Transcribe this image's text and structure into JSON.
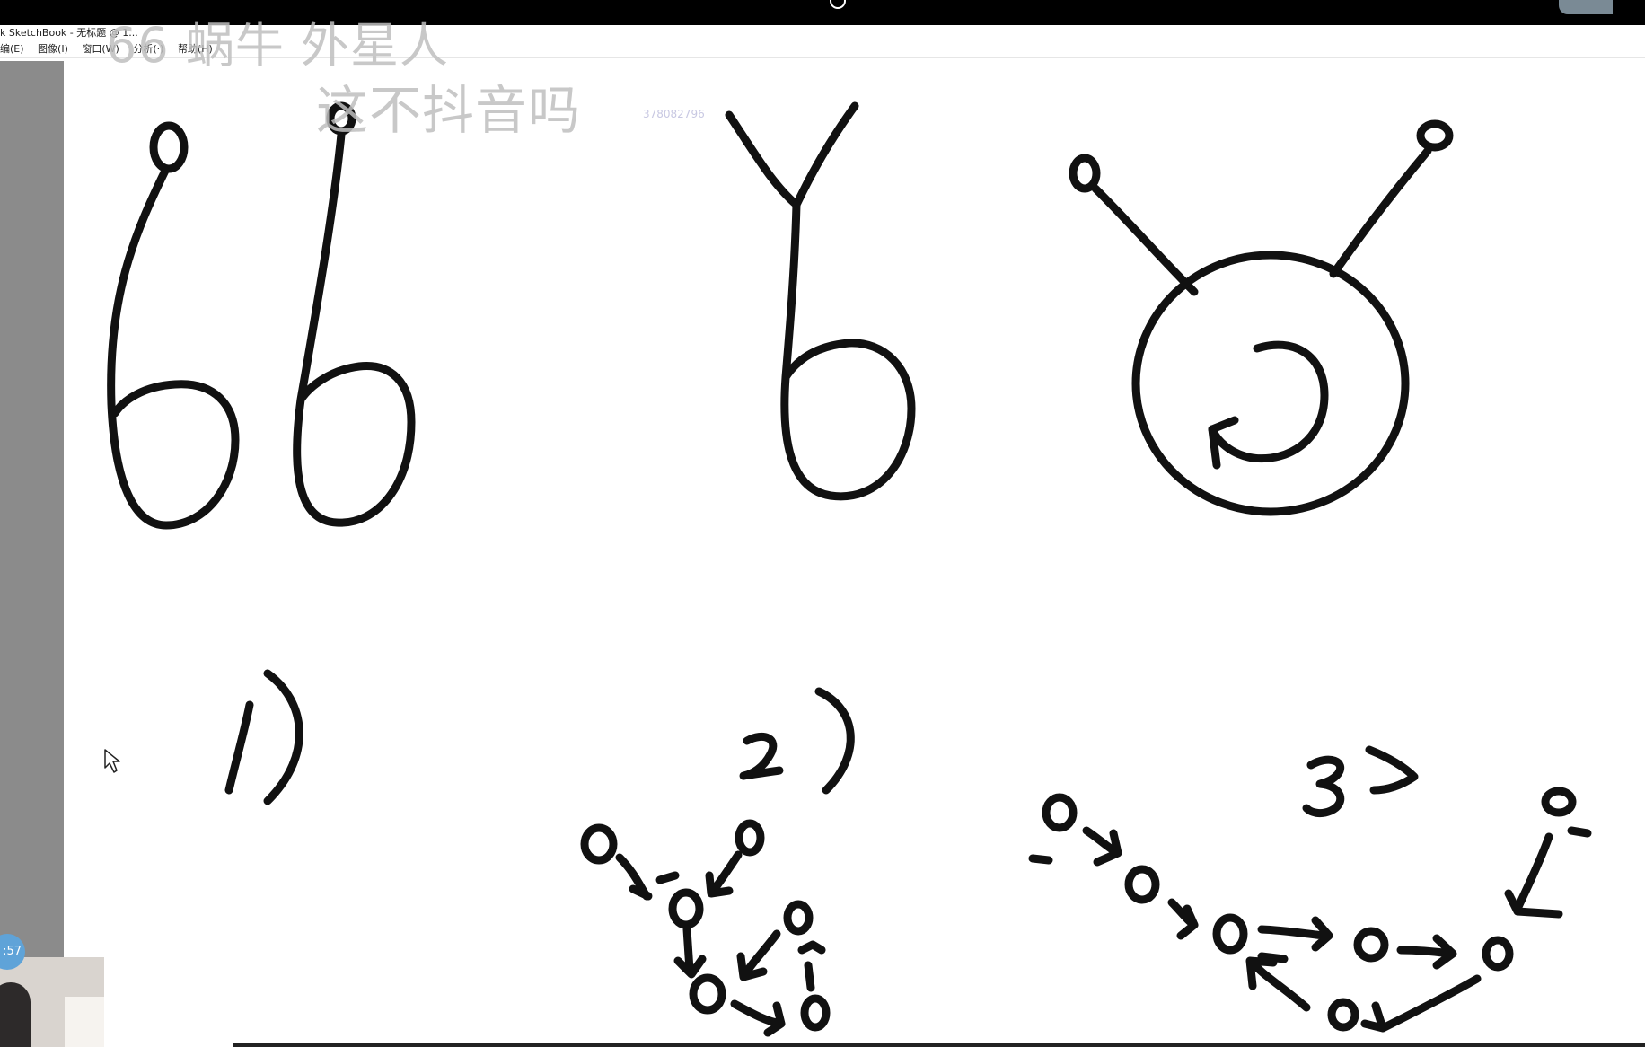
{
  "window": {
    "title": "k SketchBook - 无标题 @ 1...",
    "menus": [
      "编(E)",
      "图像(I)",
      "窗口(W)",
      "分析(·)",
      "帮助(H)"
    ]
  },
  "overlay": {
    "line1": "66 蜗牛  外星人",
    "line2": "这不抖音吗"
  },
  "watermark": "378082796",
  "drawing": {
    "labels": [
      "1)",
      "2)",
      "3)"
    ]
  },
  "webcam": {
    "clock": ":57"
  }
}
